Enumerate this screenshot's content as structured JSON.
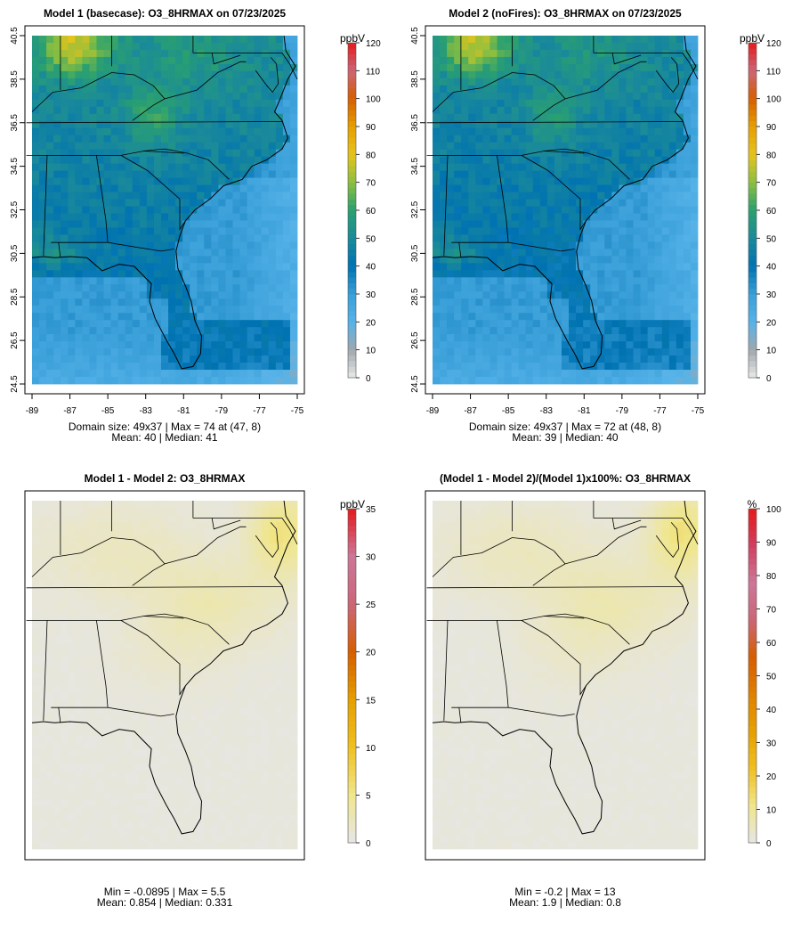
{
  "chart_data": [
    {
      "type": "heatmap",
      "title": "Model 1 (basecase): O3_8HRMAX on 07/23/2025",
      "units": "ppbV",
      "x_ticks": [
        "-89",
        "-87",
        "-85",
        "-83",
        "-81",
        "-79",
        "-77",
        "-75"
      ],
      "y_ticks": [
        "24.5",
        "26.5",
        "28.5",
        "30.5",
        "32.5",
        "34.5",
        "36.5",
        "38.5",
        "40.5"
      ],
      "xlim": [
        -89,
        -75
      ],
      "ylim": [
        24.5,
        40.5
      ],
      "colorbar": {
        "ticks": [
          "0",
          "10",
          "20",
          "30",
          "40",
          "50",
          "60",
          "70",
          "80",
          "90",
          "100",
          "110",
          "120"
        ],
        "min": 0,
        "max": 120
      },
      "stats_line1": "Domain size: 49x37 | Max = 74 at (47, 8)",
      "stats_line2": "Mean: 40 |  Median: 41",
      "field": "model1"
    },
    {
      "type": "heatmap",
      "title": "Model 2 (noFires): O3_8HRMAX on 07/23/2025",
      "units": "ppbV",
      "x_ticks": [
        "-89",
        "-87",
        "-85",
        "-83",
        "-81",
        "-79",
        "-77",
        "-75"
      ],
      "y_ticks": [
        "24.5",
        "26.5",
        "28.5",
        "30.5",
        "32.5",
        "34.5",
        "36.5",
        "38.5",
        "40.5"
      ],
      "xlim": [
        -89,
        -75
      ],
      "ylim": [
        24.5,
        40.5
      ],
      "colorbar": {
        "ticks": [
          "0",
          "10",
          "20",
          "30",
          "40",
          "50",
          "60",
          "70",
          "80",
          "90",
          "100",
          "110",
          "120"
        ],
        "min": 0,
        "max": 120
      },
      "stats_line1": "Domain size: 49x37 | Max = 72 at (48, 8)",
      "stats_line2": "Mean: 39 |  Median: 40",
      "field": "model2"
    },
    {
      "type": "heatmap",
      "title": "Model 1 - Model 2: O3_8HRMAX",
      "units": "ppbV",
      "colorbar": {
        "ticks": [
          "0",
          "5",
          "10",
          "15",
          "20",
          "25",
          "30",
          "35"
        ],
        "min": 0,
        "max": 35
      },
      "stats_line1": "Min = -0.0895 | Max = 5.5",
      "stats_line2": "Mean: 0.854 |  Median: 0.331",
      "field": "diff"
    },
    {
      "type": "heatmap",
      "title": "(Model 1 - Model 2)/(Model 1)x100%: O3_8HRMAX",
      "units": "%",
      "colorbar": {
        "ticks": [
          "0",
          "10",
          "20",
          "30",
          "40",
          "50",
          "60",
          "70",
          "80",
          "90",
          "100"
        ],
        "min": 0,
        "max": 100
      },
      "stats_line1": "Min = -0.2 | Max = 13",
      "stats_line2": "Mean: 1.9 |  Median: 0.8",
      "field": "pct"
    }
  ],
  "colors": {
    "conc_scale": [
      "#e8e8e8",
      "#9fa7ad",
      "#56b3e9",
      "#3a9fd8",
      "#0072b2",
      "#1a8a9a",
      "#2aa070",
      "#8cbf3f",
      "#e6c31c",
      "#e69f00",
      "#d55e00",
      "#cc6677",
      "#e41a1c"
    ],
    "diff_scale": [
      "#e6e6e6",
      "#f0e68c",
      "#f0c020",
      "#e69f00",
      "#d55e00",
      "#cc6677",
      "#cc7799",
      "#e41a1c"
    ],
    "pct_scale": [
      "#e6e6e6",
      "#f0e68c",
      "#f0c020",
      "#e6a000",
      "#e08000",
      "#d55e00",
      "#cc6677",
      "#cc7799",
      "#d04060",
      "#e41a1c"
    ]
  }
}
